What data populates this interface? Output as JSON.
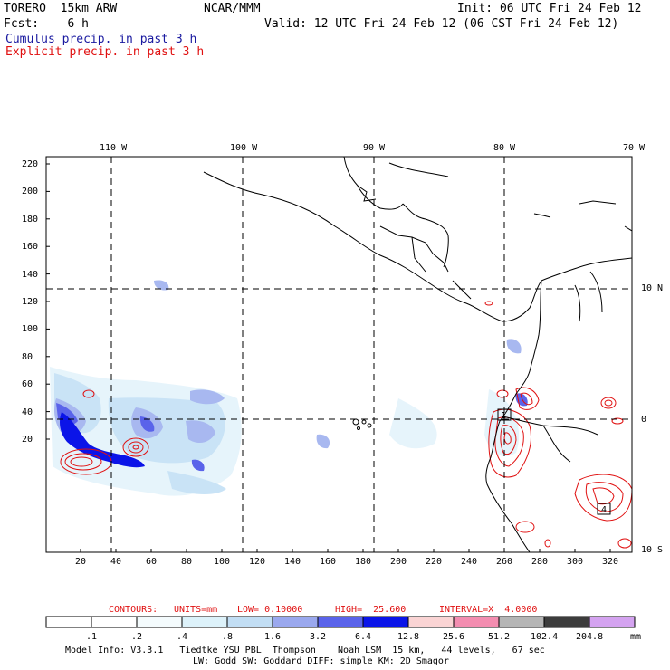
{
  "header": {
    "model": "TORERO  15km ARW",
    "center": "NCAR/MMM",
    "init": "Init: 06 UTC Fri 24 Feb 12",
    "fcst": "Fcst:    6 h",
    "valid": "Valid: 12 UTC Fri 24 Feb 12 (06 CST Fri 24 Feb 12)",
    "field1": "Cumulus precip. in past 3 h",
    "field2": "Explicit precip. in past 3 h",
    "field1_color": "#1a1aa0",
    "field2_color": "#e01010"
  },
  "map": {
    "lon_labels": [
      "110 W",
      "100 W",
      "90 W",
      "80 W",
      "70 W"
    ],
    "lat_labels": [
      "10 N",
      "0",
      "10 S"
    ],
    "y_ticks": [
      "220",
      "200",
      "180",
      "160",
      "140",
      "120",
      "100",
      "80",
      "60",
      "40",
      "20"
    ],
    "x_ticks": [
      "20",
      "40",
      "60",
      "80",
      "100",
      "120",
      "140",
      "160",
      "180",
      "200",
      "220",
      "240",
      "260",
      "280",
      "300",
      "320"
    ],
    "box_labels": [
      "1",
      "4"
    ]
  },
  "contour_info": {
    "contours": "CONTOURS:",
    "units": "UNITS=mm",
    "low": "LOW= 0.10000",
    "high": "HIGH=  25.600",
    "interval": "INTERVAL=X  4.0000"
  },
  "colorbar": {
    "labels": [
      ".1",
      ".2",
      ".4",
      ".8",
      "1.6",
      "3.2",
      "6.4",
      "12.8",
      "25.6",
      "51.2",
      "102.4",
      "204.8"
    ],
    "unit": "mm",
    "colors": [
      "#ffffff",
      "#ffffff",
      "#f4fbfd",
      "#ddf2fa",
      "#c2def4",
      "#9aa8ee",
      "#5a63ea",
      "#0b14e8",
      "#fad4d4",
      "#f38db0",
      "#b5b5b5",
      "#3c3c3c",
      "#d4a3f0"
    ]
  },
  "footer": {
    "line1": "Model Info: V3.3.1   Tiedtke YSU PBL  Thompson    Noah LSM  15 km,   44 levels,   67 sec",
    "line2": "LW: Godd SW: Goddard DIFF: simple KM: 2D Smagor"
  }
}
